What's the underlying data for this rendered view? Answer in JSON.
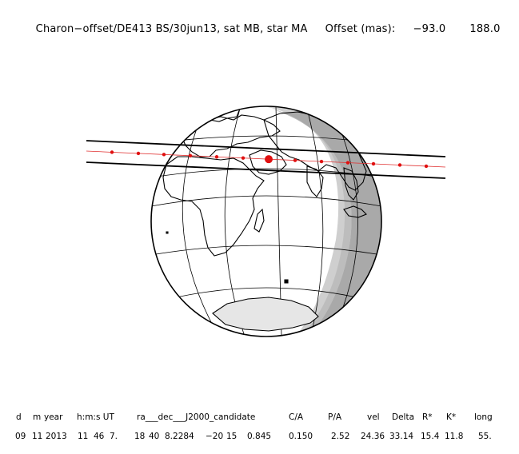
{
  "header": {
    "title": "Charon−offset/DE413 BS/30jun13, sat MB, star MA",
    "offset_label": "Offset (mas):",
    "offset_x": "−93.0",
    "offset_y": "188.0"
  },
  "table": {
    "columns": [
      "d",
      "m",
      "year",
      "h:m:s UT",
      "ra___dec___J2000_candidate",
      "C/A",
      "P/A",
      "vel",
      "Delta",
      "R*",
      "K*",
      "long"
    ],
    "values": [
      "09",
      "11",
      "2013",
      "11",
      "46",
      "7.",
      "18",
      "40",
      "8.2284",
      "−20",
      "15",
      "0.845",
      "0.150",
      "2.52",
      "24.36",
      "33.14",
      "15.4",
      "11.8",
      "55."
    ]
  },
  "colors": {
    "track_line": "#000000",
    "centre_line": "#e03030",
    "track_dots": "#e01010",
    "night_shade": "#cfcfcf",
    "deep_night_shade": "#a9a9a9",
    "globe_outline": "#000000"
  }
}
